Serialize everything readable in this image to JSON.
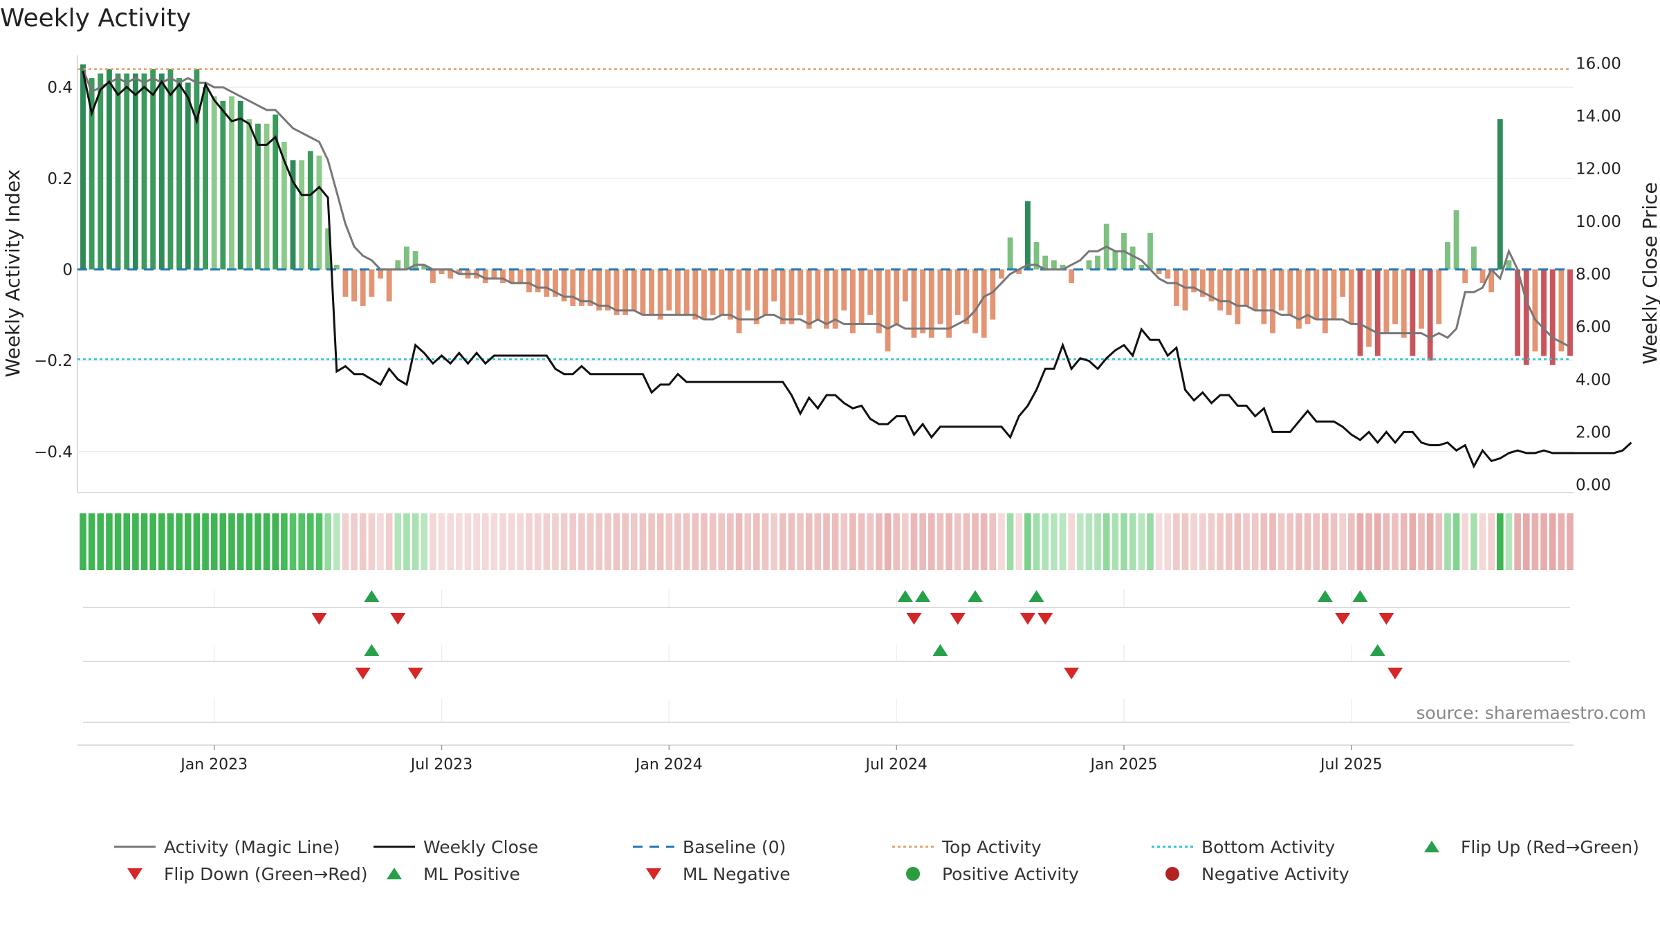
{
  "chart_data": {
    "type": "bar",
    "title": "Weekly Activity",
    "ylabel": "Weekly Activity Index",
    "y2label": "Weekly Close Price",
    "source": "source: sharemaestro.com",
    "ylim": [
      -0.49,
      0.47
    ],
    "y2lim": [
      -0.3,
      16.3
    ],
    "yticks": [
      {
        "v": 0.4,
        "label": "0.4"
      },
      {
        "v": 0.2,
        "label": "0.2"
      },
      {
        "v": 0,
        "label": "0"
      },
      {
        "v": -0.2,
        "label": "−0.2"
      },
      {
        "v": -0.4,
        "label": "−0.4"
      }
    ],
    "y2ticks": [
      {
        "v": 16,
        "label": "16.00"
      },
      {
        "v": 14,
        "label": "14.00"
      },
      {
        "v": 12,
        "label": "12.00"
      },
      {
        "v": 10,
        "label": "10.00"
      },
      {
        "v": 8,
        "label": "8.00"
      },
      {
        "v": 6,
        "label": "6.00"
      },
      {
        "v": 4,
        "label": "4.00"
      },
      {
        "v": 2,
        "label": "2.00"
      },
      {
        "v": 0,
        "label": "0.00"
      }
    ],
    "date_ticks": [
      {
        "week": 15,
        "label": "Jan 2023"
      },
      {
        "week": 41,
        "label": "Jul 2023"
      },
      {
        "week": 67,
        "label": "Jan 2024"
      },
      {
        "week": 93,
        "label": "Jul 2024"
      },
      {
        "week": 119,
        "label": "Jan 2025"
      },
      {
        "week": 145,
        "label": "Jul 2025"
      }
    ],
    "top_activity": 0.44,
    "bottom_activity": -0.197,
    "baseline": 0,
    "activity": [
      0.45,
      0.42,
      0.43,
      0.44,
      0.43,
      0.43,
      0.43,
      0.43,
      0.44,
      0.43,
      0.44,
      0.42,
      0.41,
      0.44,
      0.4,
      0.38,
      0.37,
      0.38,
      0.37,
      0.33,
      0.32,
      0.32,
      0.34,
      0.28,
      0.24,
      0.24,
      0.26,
      0.25,
      0.09,
      0.01,
      -0.06,
      -0.07,
      -0.08,
      -0.06,
      -0.02,
      -0.07,
      0.02,
      0.05,
      0.04,
      0.01,
      -0.03,
      -0.01,
      -0.02,
      -0.01,
      -0.02,
      -0.02,
      -0.03,
      -0.02,
      -0.03,
      -0.03,
      -0.03,
      -0.05,
      -0.05,
      -0.06,
      -0.06,
      -0.07,
      -0.08,
      -0.08,
      -0.08,
      -0.09,
      -0.09,
      -0.1,
      -0.1,
      -0.09,
      -0.1,
      -0.1,
      -0.11,
      -0.09,
      -0.1,
      -0.1,
      -0.11,
      -0.11,
      -0.1,
      -0.1,
      -0.11,
      -0.14,
      -0.09,
      -0.12,
      -0.1,
      -0.07,
      -0.12,
      -0.12,
      -0.1,
      -0.13,
      -0.11,
      -0.13,
      -0.13,
      -0.09,
      -0.14,
      -0.12,
      -0.1,
      -0.14,
      -0.18,
      -0.12,
      -0.07,
      -0.15,
      -0.14,
      -0.15,
      -0.12,
      -0.15,
      -0.1,
      -0.12,
      -0.14,
      -0.15,
      -0.11,
      -0.02,
      0.07,
      -0.01,
      0.15,
      0.06,
      0.03,
      0.02,
      0.01,
      -0.03,
      0.0,
      0.02,
      0.03,
      0.1,
      0.04,
      0.08,
      0.05,
      0.01,
      0.08,
      -0.01,
      -0.02,
      -0.08,
      -0.09,
      -0.05,
      -0.06,
      -0.07,
      -0.09,
      -0.1,
      -0.12,
      -0.08,
      -0.09,
      -0.12,
      -0.14,
      -0.09,
      -0.1,
      -0.13,
      -0.12,
      -0.11,
      -0.14,
      -0.11,
      -0.06,
      -0.12,
      -0.19,
      -0.17,
      -0.19,
      -0.14,
      -0.12,
      -0.15,
      -0.19,
      -0.13,
      -0.2,
      -0.12,
      0.06,
      0.13,
      -0.03,
      0.05,
      -0.03,
      -0.05,
      0.33,
      0.02,
      -0.19,
      -0.21,
      -0.18,
      -0.19,
      -0.21,
      -0.18,
      -0.19
    ],
    "magic_line": [
      0.44,
      0.39,
      0.4,
      0.41,
      0.42,
      0.41,
      0.42,
      0.41,
      0.42,
      0.41,
      0.42,
      0.41,
      0.42,
      0.41,
      0.41,
      0.4,
      0.4,
      0.39,
      0.38,
      0.37,
      0.36,
      0.35,
      0.35,
      0.33,
      0.31,
      0.3,
      0.29,
      0.28,
      0.24,
      0.17,
      0.1,
      0.05,
      0.03,
      0.02,
      0.0,
      0.0,
      0.0,
      0.0,
      0.01,
      0.01,
      0.0,
      0.0,
      0.0,
      -0.01,
      -0.01,
      -0.01,
      -0.02,
      -0.02,
      -0.02,
      -0.03,
      -0.03,
      -0.03,
      -0.04,
      -0.04,
      -0.05,
      -0.06,
      -0.06,
      -0.07,
      -0.07,
      -0.08,
      -0.08,
      -0.09,
      -0.09,
      -0.09,
      -0.1,
      -0.1,
      -0.1,
      -0.1,
      -0.1,
      -0.1,
      -0.1,
      -0.11,
      -0.11,
      -0.1,
      -0.1,
      -0.11,
      -0.11,
      -0.11,
      -0.1,
      -0.1,
      -0.11,
      -0.11,
      -0.11,
      -0.12,
      -0.11,
      -0.12,
      -0.11,
      -0.12,
      -0.12,
      -0.12,
      -0.12,
      -0.12,
      -0.13,
      -0.12,
      -0.13,
      -0.13,
      -0.13,
      -0.13,
      -0.13,
      -0.13,
      -0.12,
      -0.11,
      -0.09,
      -0.06,
      -0.05,
      -0.03,
      -0.01,
      0.0,
      0.01,
      0.01,
      0.0,
      0.0,
      0.0,
      0.01,
      0.02,
      0.04,
      0.04,
      0.05,
      0.04,
      0.04,
      0.03,
      0.02,
      0.0,
      -0.02,
      -0.03,
      -0.03,
      -0.04,
      -0.04,
      -0.05,
      -0.06,
      -0.07,
      -0.07,
      -0.08,
      -0.08,
      -0.09,
      -0.09,
      -0.09,
      -0.1,
      -0.1,
      -0.11,
      -0.1,
      -0.11,
      -0.11,
      -0.11,
      -0.11,
      -0.12,
      -0.12,
      -0.13,
      -0.14,
      -0.14,
      -0.14,
      -0.14,
      -0.14,
      -0.14,
      -0.15,
      -0.14,
      -0.15,
      -0.13,
      -0.05,
      -0.05,
      -0.04,
      0.0,
      -0.02,
      0.04,
      0.0,
      -0.07,
      -0.11,
      -0.13,
      -0.15,
      -0.16,
      -0.17
    ],
    "close": [
      15.7,
      14.1,
      15.0,
      15.3,
      14.8,
      15.1,
      14.8,
      15.1,
      14.8,
      15.3,
      14.8,
      15.2,
      14.7,
      13.8,
      15.2,
      14.6,
      14.2,
      13.8,
      13.9,
      13.7,
      12.9,
      12.9,
      13.2,
      12.3,
      11.5,
      11.0,
      11.0,
      11.3,
      10.9,
      4.3,
      4.5,
      4.2,
      4.2,
      4.0,
      3.8,
      4.4,
      4.0,
      3.8,
      5.3,
      5.0,
      4.6,
      4.9,
      4.6,
      5.0,
      4.6,
      5.0,
      4.6,
      4.9,
      4.9,
      4.9,
      4.9,
      4.9,
      4.9,
      4.9,
      4.4,
      4.2,
      4.2,
      4.5,
      4.2,
      4.2,
      4.2,
      4.2,
      4.2,
      4.2,
      4.2,
      3.5,
      3.8,
      3.8,
      4.2,
      3.9,
      3.9,
      3.9,
      3.9,
      3.9,
      3.9,
      3.9,
      3.9,
      3.9,
      3.9,
      3.9,
      3.9,
      3.4,
      2.7,
      3.3,
      2.9,
      3.4,
      3.4,
      3.1,
      2.9,
      3.0,
      2.5,
      2.3,
      2.3,
      2.6,
      2.6,
      1.9,
      2.3,
      1.8,
      2.2,
      2.2,
      2.2,
      2.2,
      2.2,
      2.2,
      2.2,
      2.2,
      1.8,
      2.6,
      3.0,
      3.6,
      4.4,
      4.4,
      5.3,
      4.4,
      4.8,
      4.7,
      4.4,
      4.8,
      5.1,
      5.3,
      4.9,
      5.9,
      5.5,
      5.5,
      4.9,
      5.2,
      3.6,
      3.2,
      3.5,
      3.1,
      3.4,
      3.4,
      3.0,
      3.0,
      2.6,
      2.9,
      2.0,
      2.0,
      2.0,
      2.4,
      2.8,
      2.4,
      2.4,
      2.4,
      2.2,
      1.9,
      1.7,
      2.0,
      1.6,
      2.0,
      1.6,
      2.0,
      2.0,
      1.6,
      1.5,
      1.5,
      1.6,
      1.3,
      1.5,
      0.7,
      1.3,
      0.9,
      1.0,
      1.2,
      1.3,
      1.2,
      1.2,
      1.3,
      1.2,
      1.2,
      1.2,
      1.2,
      1.2,
      1.2,
      1.2,
      1.2,
      1.3,
      1.6
    ],
    "flip_up": [
      33,
      94,
      96,
      102,
      109,
      142,
      146
    ],
    "flip_down": [
      27,
      36,
      95,
      100,
      108,
      110,
      144,
      149
    ],
    "ml_positive": [
      33,
      98,
      148
    ],
    "ml_negative": [
      32,
      38,
      113,
      150
    ],
    "legend": [
      {
        "label": "Activity (Magic Line)",
        "icon": "line",
        "color": "#777777"
      },
      {
        "label": "Weekly Close",
        "icon": "line",
        "color": "#111111"
      },
      {
        "label": "Baseline (0)",
        "icon": "dash",
        "color": "#1f77b4"
      },
      {
        "label": "Top Activity",
        "icon": "dot-line",
        "color": "#e6a370"
      },
      {
        "label": "Bottom Activity",
        "icon": "dot-line",
        "color": "#2ec4d9"
      },
      {
        "label": "Flip Up (Red→Green)",
        "icon": "triangle-up",
        "color": "#27a04a"
      },
      {
        "label": "Flip Down (Green→Red)",
        "icon": "triangle-down",
        "color": "#d62728"
      },
      {
        "label": "ML Positive",
        "icon": "triangle-up",
        "color": "#27a04a"
      },
      {
        "label": "ML Negative",
        "icon": "triangle-down",
        "color": "#d62728"
      },
      {
        "label": "Positive Activity",
        "icon": "circle",
        "color": "#2a9d3f"
      },
      {
        "label": "Negative Activity",
        "icon": "circle",
        "color": "#b22222"
      }
    ]
  }
}
